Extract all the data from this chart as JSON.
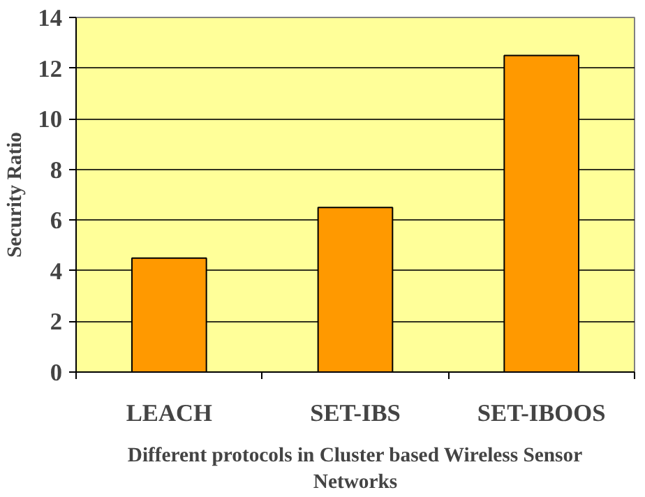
{
  "chart_data": {
    "type": "bar",
    "xlabel": "Different protocols in Cluster based Wireless Sensor Networks",
    "ylabel": "Security Ratio",
    "categories": [
      "LEACH",
      "SET-IBS",
      "SET-IBOOS"
    ],
    "values": [
      4.5,
      6.5,
      12.5
    ],
    "color": "#ff9900",
    "ylim": [
      0,
      14
    ],
    "yticks": [
      0,
      2,
      4,
      6,
      8,
      10,
      12,
      14
    ],
    "grid": "y"
  }
}
